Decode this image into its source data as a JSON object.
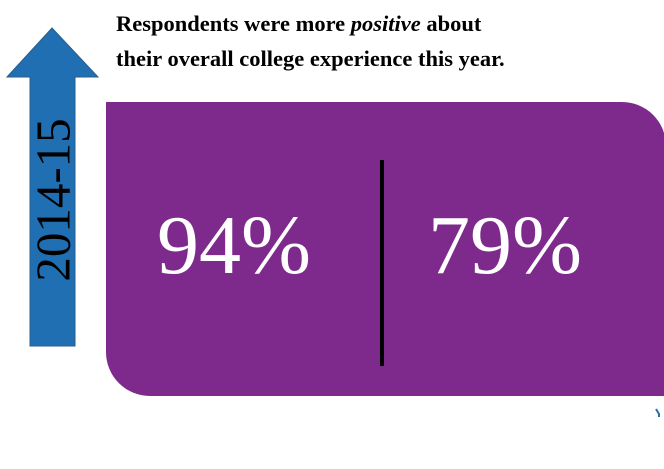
{
  "colors": {
    "arrow": "#1f6fb2",
    "arrow_edge": "#2a5d8c",
    "panel": "#7e2a8d",
    "divider": "#000000",
    "stat_text": "#ffffff",
    "accent_mark": "#2a6faa"
  },
  "icons": {
    "arrow": "up-arrow-icon"
  },
  "year": "2014-15",
  "headline": {
    "before": "Respondents were more ",
    "emphasis": "positive",
    "after": " about",
    "line2": "their overall college experience this year."
  },
  "stats": [
    "94%",
    "79%"
  ]
}
